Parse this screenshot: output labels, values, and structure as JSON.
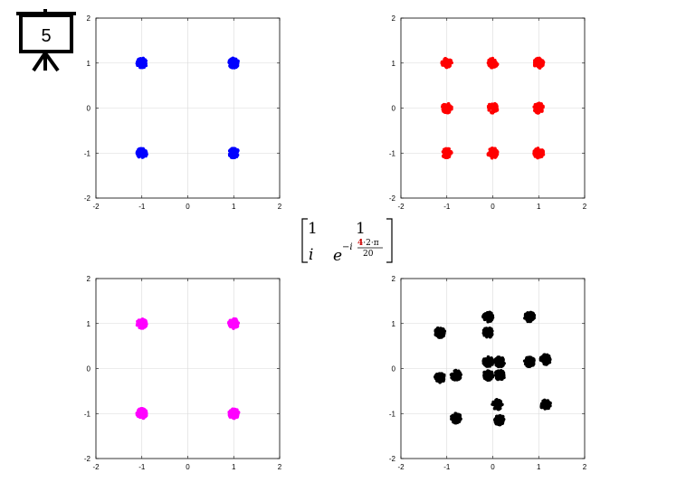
{
  "slide_number": "5",
  "matrix": {
    "a11": "1",
    "a12": "1",
    "a21": "i",
    "a22_base": "e",
    "a22_exp_prefix": "−i",
    "a22_exp_num_highlight": "4",
    "a22_exp_num_rest": "·2·π",
    "a22_exp_den": "20",
    "highlight_color": "#cc0000"
  },
  "chart_data": [
    {
      "type": "scatter",
      "color": "#0000ff",
      "xlim": [
        -2,
        2
      ],
      "ylim": [
        -2,
        2
      ],
      "xticks": [
        "-2",
        "-1",
        "0",
        "1",
        "2"
      ],
      "yticks": [
        "-2",
        "-1",
        "0",
        "1",
        "2"
      ],
      "grid": true,
      "clusters": [
        {
          "x": -1,
          "y": 1
        },
        {
          "x": 1,
          "y": 1
        },
        {
          "x": -1,
          "y": -1
        },
        {
          "x": 1,
          "y": -1
        }
      ]
    },
    {
      "type": "scatter",
      "color": "#ff0000",
      "xlim": [
        -2,
        2
      ],
      "ylim": [
        -2,
        2
      ],
      "xticks": [
        "-2",
        "-1",
        "0",
        "1",
        "2"
      ],
      "yticks": [
        "-2",
        "-1",
        "0",
        "1",
        "2"
      ],
      "grid": true,
      "clusters": [
        {
          "x": -1,
          "y": 1
        },
        {
          "x": 0,
          "y": 1
        },
        {
          "x": 1,
          "y": 1
        },
        {
          "x": -1,
          "y": 0
        },
        {
          "x": 0,
          "y": 0
        },
        {
          "x": 1,
          "y": 0
        },
        {
          "x": -1,
          "y": -1
        },
        {
          "x": 0,
          "y": -1
        },
        {
          "x": 1,
          "y": -1
        }
      ]
    },
    {
      "type": "scatter",
      "color": "#ff00ff",
      "xlim": [
        -2,
        2
      ],
      "ylim": [
        -2,
        2
      ],
      "xticks": [
        "-2",
        "-1",
        "0",
        "1",
        "2"
      ],
      "yticks": [
        "-2",
        "-1",
        "0",
        "1",
        "2"
      ],
      "grid": true,
      "clusters": [
        {
          "x": -1,
          "y": 1
        },
        {
          "x": 1,
          "y": 1
        },
        {
          "x": -1,
          "y": -1
        },
        {
          "x": 1,
          "y": -1
        }
      ]
    },
    {
      "type": "scatter",
      "color": "#000000",
      "xlim": [
        -2,
        2
      ],
      "ylim": [
        -2,
        2
      ],
      "xticks": [
        "-2",
        "-1",
        "0",
        "1",
        "2"
      ],
      "yticks": [
        "-2",
        "-1",
        "0",
        "1",
        "2"
      ],
      "grid": true,
      "clusters": [
        {
          "x": -0.1,
          "y": 1.15
        },
        {
          "x": 0.8,
          "y": 1.15
        },
        {
          "x": -1.15,
          "y": 0.8
        },
        {
          "x": -0.1,
          "y": 0.8
        },
        {
          "x": -0.1,
          "y": 0.15
        },
        {
          "x": 0.15,
          "y": 0.15
        },
        {
          "x": 0.8,
          "y": 0.15
        },
        {
          "x": 1.15,
          "y": 0.2
        },
        {
          "x": -1.15,
          "y": -0.2
        },
        {
          "x": -0.8,
          "y": -0.15
        },
        {
          "x": -0.1,
          "y": -0.15
        },
        {
          "x": 0.15,
          "y": -0.15
        },
        {
          "x": 0.1,
          "y": -0.8
        },
        {
          "x": 1.15,
          "y": -0.8
        },
        {
          "x": -0.8,
          "y": -1.1
        },
        {
          "x": 0.15,
          "y": -1.15
        }
      ]
    }
  ]
}
